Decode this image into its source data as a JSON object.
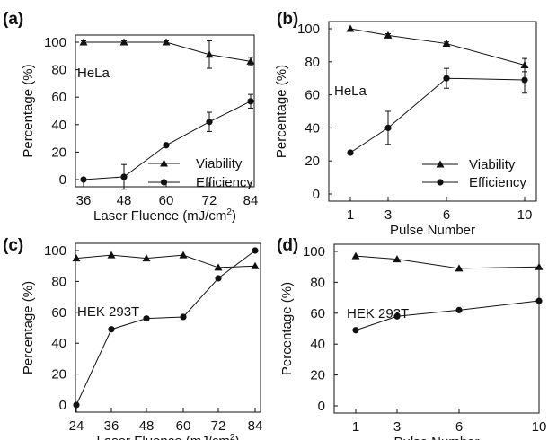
{
  "chart_data": [
    {
      "panel_label": "(a)",
      "type": "line",
      "annotation": "HeLa",
      "ylabel": "Percentage (%)",
      "xlabel": "Laser Fluence (mJ/cm",
      "xlabel_sup": "2",
      "xlabel_end": ")",
      "x": [
        36,
        48,
        60,
        72,
        84
      ],
      "xticks": [
        "36",
        "48",
        "60",
        "72",
        "84"
      ],
      "ylim": [
        0,
        100
      ],
      "yticks": [
        "0",
        "20",
        "40",
        "60",
        "80",
        "100"
      ],
      "series": [
        {
          "name": "Viability",
          "marker": "triangle",
          "values": [
            100,
            100,
            100,
            91,
            86
          ],
          "errors": [
            1,
            1,
            1,
            10,
            3
          ]
        },
        {
          "name": "Efficiency",
          "marker": "circle",
          "values": [
            0,
            2,
            25,
            42,
            57
          ],
          "errors": [
            0,
            9,
            1,
            7,
            5
          ]
        }
      ],
      "legend_position": "bottom-right"
    },
    {
      "panel_label": "(b)",
      "type": "line",
      "annotation": "HeLa",
      "ylabel": "Percentage (%)",
      "xlabel": "Pulse Number",
      "x": [
        1,
        3,
        6,
        10
      ],
      "xticks": [
        "1",
        "3",
        "6",
        "10"
      ],
      "ylim": [
        0,
        100
      ],
      "yticks": [
        "0",
        "20",
        "40",
        "60",
        "80",
        "100"
      ],
      "series": [
        {
          "name": "Viability",
          "marker": "triangle",
          "values": [
            100,
            96,
            91,
            78
          ],
          "errors": [
            0,
            1,
            1,
            4
          ]
        },
        {
          "name": "Efficiency",
          "marker": "circle",
          "values": [
            25,
            40,
            70,
            69
          ],
          "errors": [
            1,
            10,
            6,
            8
          ]
        }
      ],
      "legend_position": "bottom-right"
    },
    {
      "panel_label": "(c)",
      "type": "line",
      "annotation": "HEK 293T",
      "ylabel": "Percentage (%)",
      "xlabel": "Laser Fluence (mJ/cm",
      "xlabel_sup": "2",
      "xlabel_end": ")",
      "x": [
        24,
        36,
        48,
        60,
        72,
        84
      ],
      "xticks": [
        "24",
        "36",
        "48",
        "60",
        "72",
        "84"
      ],
      "ylim": [
        0,
        100
      ],
      "yticks": [
        "0",
        "20",
        "40",
        "60",
        "80",
        "100"
      ],
      "series": [
        {
          "marker": "triangle",
          "values": [
            95,
            97,
            95,
            97,
            89,
            90
          ]
        },
        {
          "marker": "circle",
          "values": [
            0,
            49,
            56,
            57,
            82,
            100
          ]
        }
      ]
    },
    {
      "panel_label": "(d)",
      "type": "line",
      "annotation": "HEK 293T",
      "ylabel": "Percentage (%)",
      "xlabel": "Pulse Number",
      "x": [
        1,
        3,
        6,
        10
      ],
      "xticks": [
        "1",
        "3",
        "6",
        "10"
      ],
      "ylim": [
        0,
        100
      ],
      "yticks": [
        "0",
        "20",
        "40",
        "60",
        "80",
        "100"
      ],
      "series": [
        {
          "marker": "triangle",
          "values": [
            97,
            95,
            89,
            90
          ]
        },
        {
          "marker": "circle",
          "values": [
            49,
            58,
            62,
            68
          ]
        }
      ]
    }
  ]
}
